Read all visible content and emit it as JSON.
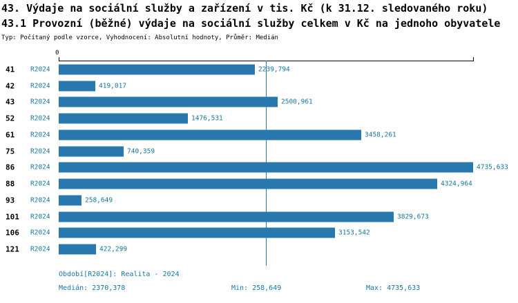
{
  "header": {
    "title_line1": "43. Výdaje na sociální služby a zařízení v tis. Kč (k 31.12. sledovaného roku)",
    "title_line2": "43.1 Provozní (běžné) výdaje na sociální služby celkem v Kč na jednoho obyvatele",
    "subtitle": "Typ: Počítaný podle vzorce, Vyhodnocení: Absolutní hodnoty, Průměr: Medián"
  },
  "chart_data": {
    "type": "bar",
    "orientation": "horizontal",
    "axis_zero_label": "0",
    "series_label": "R2024",
    "categories": [
      "41",
      "42",
      "43",
      "52",
      "61",
      "75",
      "86",
      "88",
      "93",
      "101",
      "106",
      "121"
    ],
    "values": [
      2239.794,
      419.017,
      2500.961,
      1476.531,
      3458.261,
      740.359,
      4735.633,
      4324.964,
      258.649,
      3829.673,
      3153.542,
      422.299
    ],
    "value_labels": [
      "2239,794",
      "419,017",
      "2500,961",
      "1476,531",
      "3458,261",
      "740,359",
      "4735,633",
      "4324,964",
      "258,649",
      "3829,673",
      "3153,542",
      "422,299"
    ],
    "xlim": [
      0,
      4735.633
    ],
    "median_value": 2370.378,
    "grid": false,
    "legend_position": "none"
  },
  "colors": {
    "bar": "#2878ae",
    "accent_text": "#17789e",
    "axis": "#000000"
  },
  "footer": {
    "period": "Období[R2024]: Realita - 2024",
    "median": "Medián: 2370,378",
    "min": "Min: 258,649",
    "max": "Max: 4735,633"
  }
}
